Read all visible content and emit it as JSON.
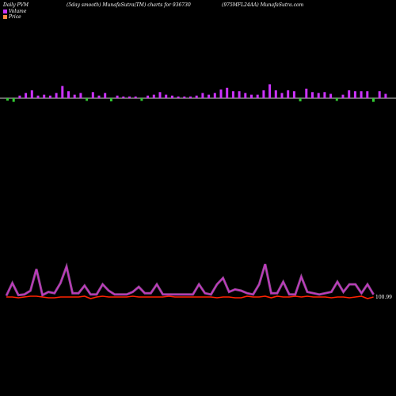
{
  "header": {
    "left": "Daily PVM",
    "center": "(5day smooth) MunafaSutra(TM) charts for 936730",
    "right": "(975MFL24AA) MunafaSutra.com"
  },
  "legend": {
    "volume_label": "Volume",
    "price_label": "Price"
  },
  "colors": {
    "background": "#000000",
    "volume_up": "#cc33ff",
    "volume_down": "#33cc33",
    "volume_edge": "#ff66ff",
    "volume_line": "#cc33cc",
    "volume_line_glow": "#ff88ff",
    "price_line": "#ff2200",
    "axis_line": "#cccccc"
  },
  "chart_data": {
    "type": "bar+line",
    "price_axis_label": "100.99",
    "volume_bars": {
      "values": [
        4,
        7,
        3,
        6,
        9,
        3,
        4,
        3,
        6,
        14,
        8,
        4,
        6,
        5,
        7,
        3,
        6,
        6,
        3,
        2,
        2,
        2,
        5,
        3,
        4,
        7,
        4,
        3,
        2,
        2,
        2,
        3,
        6,
        4,
        6,
        10,
        12,
        8,
        8,
        6,
        4,
        4,
        9,
        16,
        9,
        6,
        9,
        8,
        6,
        11,
        7,
        6,
        7,
        5,
        5,
        4,
        9,
        8,
        8,
        8,
        7,
        8,
        5
      ],
      "direction": [
        0,
        0,
        1,
        1,
        1,
        1,
        1,
        1,
        1,
        1,
        1,
        1,
        1,
        0,
        1,
        1,
        1,
        0,
        1,
        1,
        1,
        1,
        0,
        1,
        1,
        1,
        1,
        1,
        1,
        1,
        1,
        1,
        1,
        1,
        1,
        1,
        1,
        1,
        1,
        1,
        1,
        1,
        1,
        1,
        1,
        1,
        1,
        1,
        0,
        1,
        1,
        1,
        1,
        1,
        0,
        1,
        1,
        1,
        1,
        1,
        0,
        1,
        1
      ]
    },
    "volume_line": [
      2,
      22,
      3,
      4,
      10,
      44,
      3,
      8,
      6,
      22,
      48,
      6,
      6,
      18,
      4,
      4,
      20,
      10,
      4,
      4,
      4,
      8,
      16,
      6,
      6,
      20,
      4,
      4,
      4,
      4,
      4,
      4,
      20,
      6,
      4,
      20,
      30,
      8,
      12,
      10,
      6,
      4,
      20,
      52,
      6,
      6,
      24,
      4,
      4,
      32,
      8,
      6,
      4,
      6,
      8,
      24,
      8,
      20,
      20,
      6,
      20,
      4
    ],
    "price_line": [
      0,
      0,
      -1,
      0,
      1,
      1,
      0,
      -1,
      -1,
      0,
      0,
      0,
      0,
      1,
      -2,
      0,
      1,
      0,
      0,
      0,
      0,
      1,
      0,
      0,
      0,
      0,
      0,
      1,
      0,
      0,
      0,
      0,
      0,
      0,
      0,
      -1,
      0,
      0,
      -1,
      -1,
      1,
      0,
      0,
      1,
      -1,
      1,
      0,
      0,
      1,
      0,
      1,
      0,
      0,
      0,
      -1,
      0,
      0,
      -1,
      0,
      1,
      -2,
      0
    ]
  }
}
